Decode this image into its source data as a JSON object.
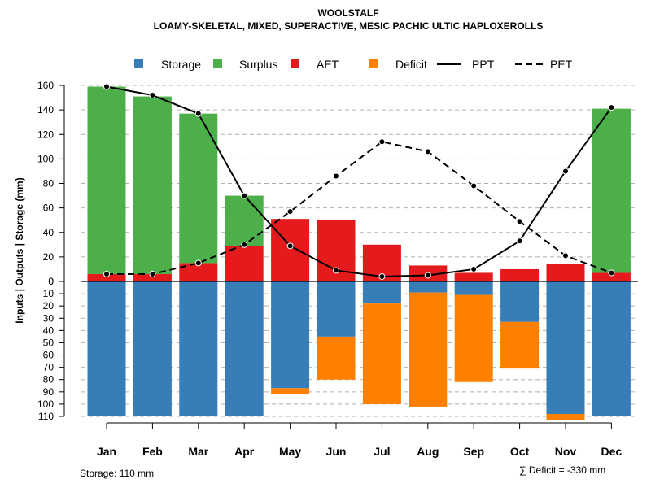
{
  "chart_data": {
    "type": "bar",
    "title": "WOOLSTALF",
    "subtitle": "LOAMY-SKELETAL, MIXED, SUPERACTIVE, MESIC PACHIC ULTIC HAPLOXEROLLS",
    "ylabel": "Inputs | Outputs | Storage    (mm)",
    "categories": [
      "Jan",
      "Feb",
      "Mar",
      "Apr",
      "May",
      "Jun",
      "Jul",
      "Aug",
      "Sep",
      "Oct",
      "Nov",
      "Dec"
    ],
    "ylim_upper": [
      0,
      160
    ],
    "ylim_lower": [
      0,
      110
    ],
    "yticks_upper": [
      "0",
      "20",
      "40",
      "60",
      "80",
      "100",
      "120",
      "140",
      "160"
    ],
    "yticks_lower": [
      "0",
      "10",
      "20",
      "30",
      "40",
      "50",
      "60",
      "70",
      "80",
      "90",
      "100",
      "110"
    ],
    "legend": {
      "storage": "Storage",
      "surplus": "Surplus",
      "aet": "AET",
      "deficit": "Deficit",
      "ppt": "PPT",
      "pet": "PET"
    },
    "colors": {
      "storage": "#377EB8",
      "surplus": "#4DAF4A",
      "aet": "#E41A1C",
      "deficit": "#FF7F00",
      "line": "#000000",
      "grid": "#b0b0b0"
    },
    "series": [
      {
        "name": "AET",
        "values": [
          6,
          6,
          15,
          29,
          51,
          50,
          30,
          13,
          7,
          10,
          14,
          7
        ]
      },
      {
        "name": "Surplus",
        "values": [
          153,
          145,
          122,
          41,
          0,
          0,
          0,
          0,
          0,
          0,
          0,
          134
        ]
      },
      {
        "name": "Storage",
        "values": [
          110,
          110,
          110,
          110,
          87,
          45,
          18,
          9,
          11,
          33,
          108,
          110
        ]
      },
      {
        "name": "Deficit",
        "values": [
          0,
          0,
          0,
          0,
          5,
          35,
          82,
          93,
          71,
          38,
          5,
          0
        ]
      },
      {
        "name": "PPT",
        "values": [
          159,
          152,
          137,
          70,
          29,
          9,
          4,
          5,
          10,
          33,
          90,
          142
        ]
      },
      {
        "name": "PET",
        "values": [
          6,
          6,
          15,
          30,
          57,
          86,
          114,
          106,
          78,
          49,
          21,
          7
        ]
      }
    ],
    "storage_note": "Storage: 110 mm",
    "deficit_note": "∑ Deficit = -330 mm"
  }
}
